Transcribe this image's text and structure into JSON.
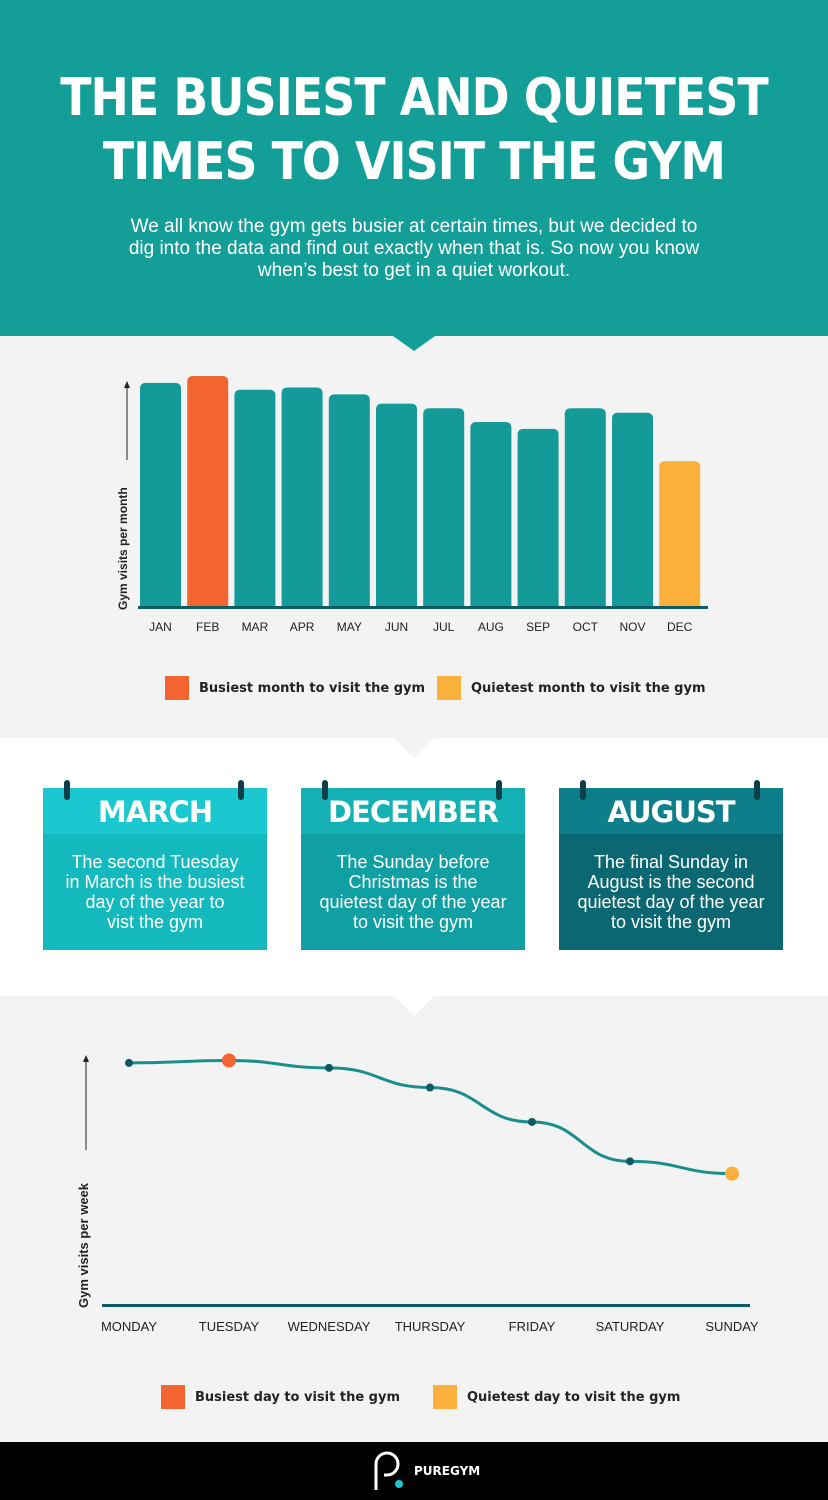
{
  "header": {
    "title_line1": "THE BUSIEST AND QUIETEST",
    "title_line2": "TIMES TO VISIT THE GYM",
    "subtitle_line1": "We all know the gym gets busier at certain times, but we decided to",
    "subtitle_line2": "dig into the data and find out exactly when that is. So now you know",
    "subtitle_line3": "when’s best to get in a quiet workout."
  },
  "colors": {
    "teal": "#139e98",
    "bar": "#149a98",
    "busiest": "#f26430",
    "quietest": "#fbb03b",
    "axis": "#0d5a62",
    "line": "#1a8e8c"
  },
  "chart_data": [
    {
      "type": "bar",
      "ylabel": "Gym visits per month",
      "categories": [
        "JAN",
        "FEB",
        "MAR",
        "APR",
        "MAY",
        "JUN",
        "JUL",
        "AUG",
        "SEP",
        "OCT",
        "NOV",
        "DEC"
      ],
      "values": [
        97,
        100,
        94,
        95,
        92,
        88,
        86,
        80,
        77,
        86,
        84,
        63
      ],
      "highlight": {
        "busiest": "FEB",
        "quietest": "DEC"
      },
      "ylim": [
        0,
        100
      ],
      "legend": {
        "busiest_label": "Busiest month to visit the gym",
        "quietest_label": "Quietest month to visit the gym"
      }
    },
    {
      "type": "line",
      "ylabel": "Gym visits per week",
      "categories": [
        "MONDAY",
        "TUESDAY",
        "WEDNESDAY",
        "THURSDAY",
        "FRIDAY",
        "SATURDAY",
        "SUNDAY"
      ],
      "values": [
        98,
        99,
        96,
        88,
        74,
        58,
        53
      ],
      "highlight": {
        "busiest": "TUESDAY",
        "quietest": "SUNDAY"
      },
      "ylim": [
        0,
        100
      ],
      "legend": {
        "busiest_label": "Busiest day to visit the gym",
        "quietest_label": "Quietest day to visit the gym"
      }
    }
  ],
  "cards": [
    {
      "heading": "MARCH",
      "lines": [
        "The second Tuesday",
        "in March is the busiest",
        "day of the year to",
        "vist the gym"
      ],
      "head_color": "#1cc8d0",
      "body_color": "#14b9bd"
    },
    {
      "heading": "DECEMBER",
      "lines": [
        "The Sunday before",
        "Christmas is the",
        "quietest day of the year",
        "to visit the gym"
      ],
      "head_color": "#14b0b4",
      "body_color": "#10a0a3"
    },
    {
      "heading": "AUGUST",
      "lines": [
        "The final Sunday in",
        "August is the second",
        "quietest day of the year",
        "to visit the gym"
      ],
      "head_color": "#0e7f8a",
      "body_color": "#0b6872"
    }
  ],
  "footer": {
    "logo_text": "PUREGYM",
    "logo_icon": "puregym-logo-icon"
  }
}
